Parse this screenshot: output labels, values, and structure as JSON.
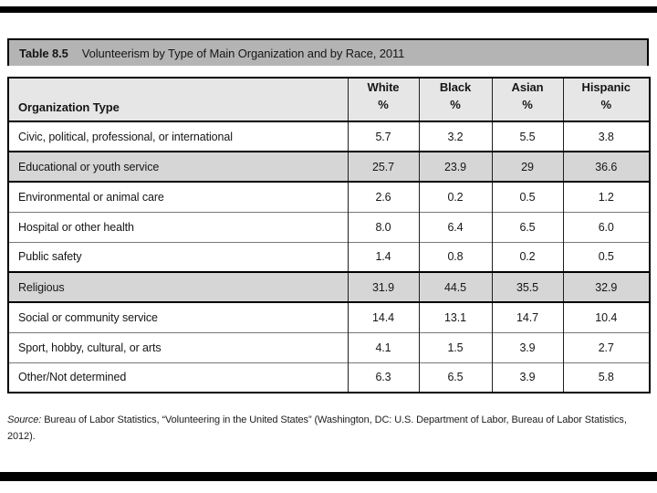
{
  "title_bar": {
    "label": "Table 8.5",
    "title": "Volunteerism by Type of Main Organization and by Race, 2011"
  },
  "table": {
    "org_header": "Organization Type",
    "columns": [
      {
        "label": "White",
        "unit": "%"
      },
      {
        "label": "Black",
        "unit": "%"
      },
      {
        "label": "Asian",
        "unit": "%"
      },
      {
        "label": "Hispanic",
        "unit": "%"
      }
    ],
    "rows": [
      {
        "label": "Civic, political, professional, or international",
        "values": [
          "5.7",
          "3.2",
          "5.5",
          "3.8"
        ],
        "shaded": false
      },
      {
        "label": "Educational or youth service",
        "values": [
          "25.7",
          "23.9",
          "29",
          "36.6"
        ],
        "shaded": true
      },
      {
        "label": "Environmental or animal care",
        "values": [
          "2.6",
          "0.2",
          "0.5",
          "1.2"
        ],
        "shaded": false
      },
      {
        "label": "Hospital or other health",
        "values": [
          "8.0",
          "6.4",
          "6.5",
          "6.0"
        ],
        "shaded": false
      },
      {
        "label": "Public safety",
        "values": [
          "1.4",
          "0.8",
          "0.2",
          "0.5"
        ],
        "shaded": false
      },
      {
        "label": "Religious",
        "values": [
          "31.9",
          "44.5",
          "35.5",
          "32.9"
        ],
        "shaded": true
      },
      {
        "label": "Social or community service",
        "values": [
          "14.4",
          "13.1",
          "14.7",
          "10.4"
        ],
        "shaded": false
      },
      {
        "label": "Sport, hobby, cultural, or arts",
        "values": [
          "4.1",
          "1.5",
          "3.9",
          "2.7"
        ],
        "shaded": false
      },
      {
        "label": "Other/Not determined",
        "values": [
          "6.3",
          "6.5",
          "3.9",
          "5.8"
        ],
        "shaded": false
      }
    ]
  },
  "source": {
    "label": "Source:",
    "text": "Bureau of Labor Statistics, “Volunteering in the United States” (Washington, DC: U.S. Department of Labor, Bureau of Labor Statistics, 2012)."
  },
  "colors": {
    "title_bar_bg": "#b4b4b4",
    "header_bg": "#e6e6e6",
    "shaded_row_bg": "#d6d6d6",
    "rule": "#000000"
  },
  "chart_data": {
    "type": "table",
    "title": "Table 8.5  Volunteerism by Type of Main Organization and by Race, 2011",
    "categories": [
      "Civic, political, professional, or international",
      "Educational or youth service",
      "Environmental or animal care",
      "Hospital or other health",
      "Public safety",
      "Religious",
      "Social or community service",
      "Sport, hobby, cultural, or arts",
      "Other/Not determined"
    ],
    "series": [
      {
        "name": "White %",
        "values": [
          5.7,
          25.7,
          2.6,
          8.0,
          1.4,
          31.9,
          14.4,
          4.1,
          6.3
        ]
      },
      {
        "name": "Black %",
        "values": [
          3.2,
          23.9,
          0.2,
          6.4,
          0.8,
          44.5,
          13.1,
          1.5,
          6.5
        ]
      },
      {
        "name": "Asian %",
        "values": [
          5.5,
          29,
          0.5,
          6.5,
          0.2,
          35.5,
          14.7,
          3.9,
          3.9
        ]
      },
      {
        "name": "Hispanic %",
        "values": [
          3.8,
          36.6,
          1.2,
          6.0,
          0.5,
          32.9,
          10.4,
          2.7,
          5.8
        ]
      }
    ],
    "source": "Bureau of Labor Statistics, “Volunteering in the United States” (Washington, DC: U.S. Department of Labor, Bureau of Labor Statistics, 2012)."
  }
}
